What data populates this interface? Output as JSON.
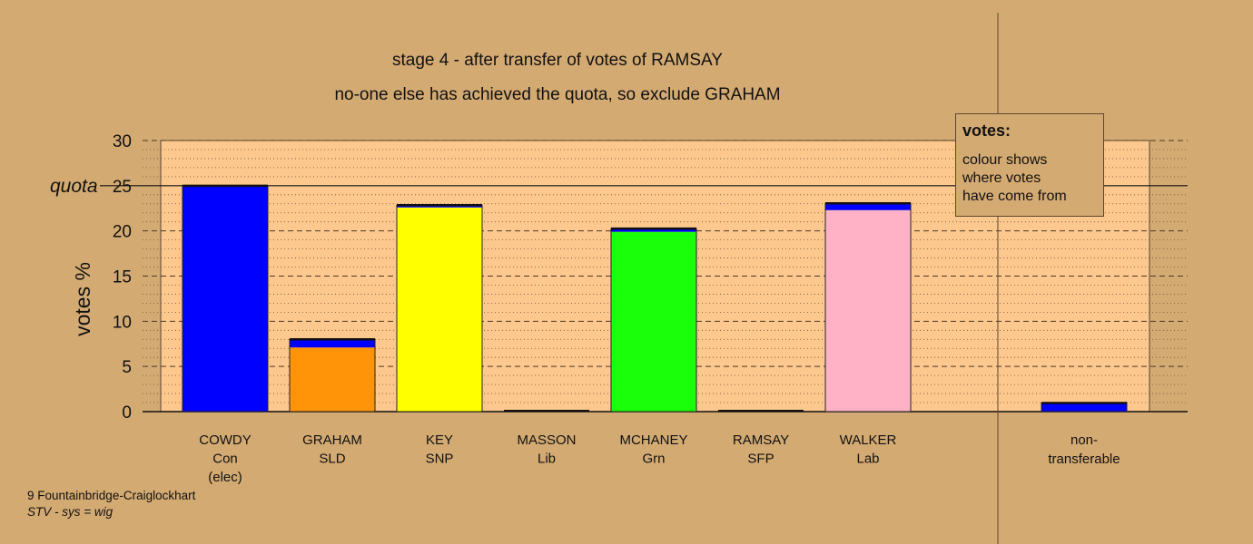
{
  "chart_data": {
    "type": "bar",
    "title": "stage 4 - after transfer of votes of RAMSAY",
    "subtitle": "no-one else has achieved the quota, so exclude GRAHAM",
    "ylabel": "votes %",
    "ylim": [
      0,
      30
    ],
    "yticks": [
      0,
      5,
      10,
      15,
      20,
      25,
      30
    ],
    "quota_label": "quota",
    "quota_value": 25,
    "candidates": [
      {
        "name": "COWDY",
        "party": "Con",
        "note": "(elec)",
        "color": "#0000ff",
        "segments": [
          {
            "value": 25.0,
            "color": "#0000ff"
          }
        ]
      },
      {
        "name": "GRAHAM",
        "party": "SLD",
        "note": "",
        "color": "#ff9408",
        "segments": [
          {
            "value": 7.1,
            "color": "#ff9408"
          },
          {
            "value": 0.9,
            "color": "#0000ff"
          }
        ]
      },
      {
        "name": "KEY",
        "party": "SNP",
        "note": "",
        "color": "#ffff00",
        "segments": [
          {
            "value": 22.6,
            "color": "#ffff00"
          },
          {
            "value": 0.25,
            "color": "#0000ff"
          }
        ]
      },
      {
        "name": "MASSON",
        "party": "Lib",
        "note": "",
        "color": "#ffff00",
        "segments": []
      },
      {
        "name": "MCHANEY",
        "party": "Grn",
        "note": "",
        "color": "#1aff0a",
        "segments": [
          {
            "value": 19.9,
            "color": "#1aff0a"
          },
          {
            "value": 0.35,
            "color": "#0000ff"
          }
        ]
      },
      {
        "name": "RAMSAY",
        "party": "SFP",
        "note": "",
        "color": "#800080",
        "segments": []
      },
      {
        "name": "WALKER",
        "party": "Lab",
        "note": "",
        "color": "#ffb2c5",
        "segments": [
          {
            "value": 22.3,
            "color": "#ffb2c5"
          },
          {
            "value": 0.75,
            "color": "#0000ff"
          }
        ]
      }
    ],
    "nontransferable": {
      "label1": "non-",
      "label2": "transferable",
      "segments": [
        {
          "value": 0.95,
          "color": "#0000ff"
        }
      ]
    }
  },
  "legend": {
    "title": "votes:",
    "lines": [
      "colour shows",
      "where votes",
      "have come from"
    ]
  },
  "footer": {
    "ward": "9 Fountainbridge-Craiglockhart",
    "system": "STV - sys = wig"
  }
}
